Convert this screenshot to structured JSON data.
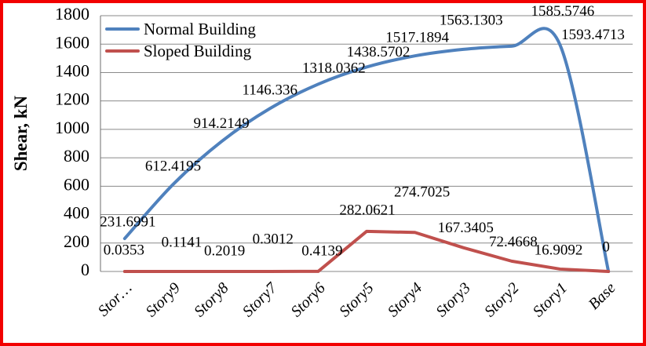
{
  "colors": {
    "frame": "#f20000",
    "grid": "#8a8a8a",
    "axis": "#6e6e6e",
    "text": "#000000",
    "background": "#ffffff"
  },
  "chart_data": {
    "type": "line",
    "title": "",
    "xlabel": "",
    "ylabel": "Shear, kN",
    "grid": true,
    "legend_position": "inside-top-left",
    "categories": [
      "Stor…",
      "Story9",
      "Story8",
      "Story7",
      "Story6",
      "Story5",
      "Story4",
      "Story3",
      "Story2",
      "Story1",
      "Base"
    ],
    "y_axis": {
      "min": 0,
      "max": 1800,
      "step": 200,
      "ticks": [
        "0",
        "200",
        "400",
        "600",
        "800",
        "1000",
        "1200",
        "1400",
        "1600",
        "1800"
      ]
    },
    "series": [
      {
        "name": "Normal Building",
        "color": "#4f81bd",
        "smooth": true,
        "values": [
          231.6991,
          612.4195,
          914.2149,
          1146.336,
          1318.0362,
          1438.5702,
          1517.1894,
          1563.1303,
          1585.5746,
          1593.4713,
          0
        ],
        "labels": [
          "231.6991",
          "612.4195",
          "914.2149",
          "1146.336",
          "1318.0362",
          "1438.5702",
          "1517.1894",
          "1563.1303",
          "1585.5746",
          "1593.4713",
          "0"
        ]
      },
      {
        "name": "Sloped Building",
        "color": "#c0504d",
        "smooth": false,
        "values": [
          0.0353,
          0.1141,
          0.2019,
          0.3012,
          0.4139,
          282.0621,
          274.7025,
          167.3405,
          72.4668,
          16.9092,
          0
        ],
        "labels": [
          "0.0353",
          "0.1141",
          "0.2019",
          "0.3012",
          "0.4139",
          "282.0621",
          "274.7025",
          "167.3405",
          "72.4668",
          "16.9092",
          ""
        ]
      }
    ]
  }
}
